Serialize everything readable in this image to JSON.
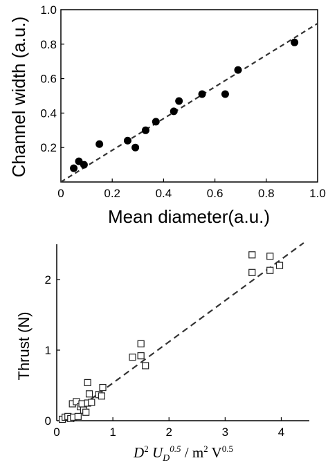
{
  "chart_data": [
    {
      "type": "scatter",
      "title": "",
      "xlabel": "Mean diameter(a.u.)",
      "ylabel": "Channel width (a.u.)",
      "xlim": [
        0,
        1.0
      ],
      "ylim": [
        0,
        1.0
      ],
      "x_ticks": [
        "0",
        "0.2",
        "0.4",
        "0.6",
        "0.8",
        "1.0"
      ],
      "y_ticks": [
        "0.2",
        "0.4",
        "0.6",
        "0.8",
        "1.0"
      ],
      "marker": "filled-circle",
      "points": [
        {
          "x": 0.05,
          "y": 0.08
        },
        {
          "x": 0.07,
          "y": 0.12
        },
        {
          "x": 0.09,
          "y": 0.1
        },
        {
          "x": 0.15,
          "y": 0.22
        },
        {
          "x": 0.26,
          "y": 0.24
        },
        {
          "x": 0.29,
          "y": 0.2
        },
        {
          "x": 0.33,
          "y": 0.3
        },
        {
          "x": 0.37,
          "y": 0.35
        },
        {
          "x": 0.44,
          "y": 0.41
        },
        {
          "x": 0.46,
          "y": 0.47
        },
        {
          "x": 0.55,
          "y": 0.51
        },
        {
          "x": 0.64,
          "y": 0.51
        },
        {
          "x": 0.69,
          "y": 0.65
        },
        {
          "x": 0.91,
          "y": 0.81
        }
      ],
      "fit_line": {
        "style": "dashed",
        "x": [
          0,
          1.0
        ],
        "y": [
          0.0,
          0.92
        ]
      }
    },
    {
      "type": "scatter",
      "title": "",
      "xlabel_parts": [
        "D",
        "2",
        " U",
        "D",
        "0.5",
        " / m",
        "2",
        " V",
        "0.5"
      ],
      "ylabel": "Thrust (N)",
      "xlim": [
        0,
        4.5
      ],
      "ylim": [
        0,
        2.5
      ],
      "x_ticks": [
        "0",
        "1",
        "2",
        "3",
        "4"
      ],
      "y_ticks": [
        "0",
        "1",
        "2"
      ],
      "marker": "open-square",
      "points": [
        {
          "x": 0.1,
          "y": 0.02
        },
        {
          "x": 0.15,
          "y": 0.05
        },
        {
          "x": 0.2,
          "y": 0.06
        },
        {
          "x": 0.25,
          "y": 0.03
        },
        {
          "x": 0.28,
          "y": 0.24
        },
        {
          "x": 0.3,
          "y": 0.05
        },
        {
          "x": 0.35,
          "y": 0.27
        },
        {
          "x": 0.38,
          "y": 0.06
        },
        {
          "x": 0.42,
          "y": 0.2
        },
        {
          "x": 0.45,
          "y": 0.24
        },
        {
          "x": 0.48,
          "y": 0.15
        },
        {
          "x": 0.52,
          "y": 0.12
        },
        {
          "x": 0.55,
          "y": 0.25
        },
        {
          "x": 0.55,
          "y": 0.54
        },
        {
          "x": 0.58,
          "y": 0.38
        },
        {
          "x": 0.62,
          "y": 0.26
        },
        {
          "x": 0.75,
          "y": 0.37
        },
        {
          "x": 0.8,
          "y": 0.35
        },
        {
          "x": 0.82,
          "y": 0.47
        },
        {
          "x": 1.35,
          "y": 0.9
        },
        {
          "x": 1.5,
          "y": 1.09
        },
        {
          "x": 1.5,
          "y": 0.92
        },
        {
          "x": 1.58,
          "y": 0.78
        },
        {
          "x": 3.48,
          "y": 2.35
        },
        {
          "x": 3.48,
          "y": 2.1
        },
        {
          "x": 3.8,
          "y": 2.33
        },
        {
          "x": 3.8,
          "y": 2.13
        },
        {
          "x": 3.97,
          "y": 2.2
        }
      ],
      "fit_line": {
        "style": "dashed",
        "x": [
          0.6,
          4.4
        ],
        "y": [
          0.3,
          2.52
        ]
      }
    }
  ]
}
